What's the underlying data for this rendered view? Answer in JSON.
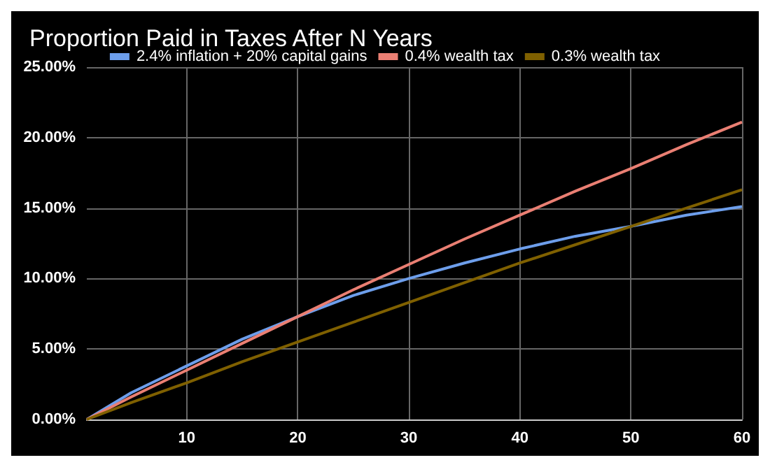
{
  "chart_data": {
    "type": "line",
    "title": "Proportion Paid in Taxes After N Years",
    "x": [
      1,
      5,
      10,
      15,
      20,
      25,
      30,
      35,
      40,
      45,
      50,
      55,
      60
    ],
    "series": [
      {
        "name": "2.4% inflation + 20% capital gains",
        "color": "#6d9eeb",
        "values": [
          0,
          1.9,
          3.8,
          5.7,
          7.3,
          8.8,
          10.0,
          11.1,
          12.1,
          13.0,
          13.7,
          14.5,
          15.1
        ]
      },
      {
        "name": "0.4% wealth tax",
        "color": "#ea7f73",
        "values": [
          0,
          1.6,
          3.5,
          5.4,
          7.3,
          9.2,
          11.0,
          12.8,
          14.5,
          16.2,
          17.8,
          19.5,
          21.1
        ]
      },
      {
        "name": "0.3% wealth tax",
        "color": "#7f6000",
        "values": [
          0,
          1.2,
          2.6,
          4.1,
          5.5,
          6.9,
          8.3,
          9.7,
          11.1,
          12.4,
          13.7,
          15.0,
          16.3
        ]
      }
    ],
    "xlim": [
      1,
      60
    ],
    "xticks": [
      10,
      20,
      30,
      40,
      50,
      60
    ],
    "ylim": [
      0,
      25
    ],
    "yticks": [
      {
        "value": 0,
        "label": "0.00%"
      },
      {
        "value": 5,
        "label": "5.00%"
      },
      {
        "value": 10,
        "label": "10.00%"
      },
      {
        "value": 15,
        "label": "15.00%"
      },
      {
        "value": 20,
        "label": "20.00%"
      },
      {
        "value": 25,
        "label": "25.00%"
      }
    ],
    "grid": true,
    "legend": "top",
    "marker": "none",
    "line_style": "solid"
  }
}
